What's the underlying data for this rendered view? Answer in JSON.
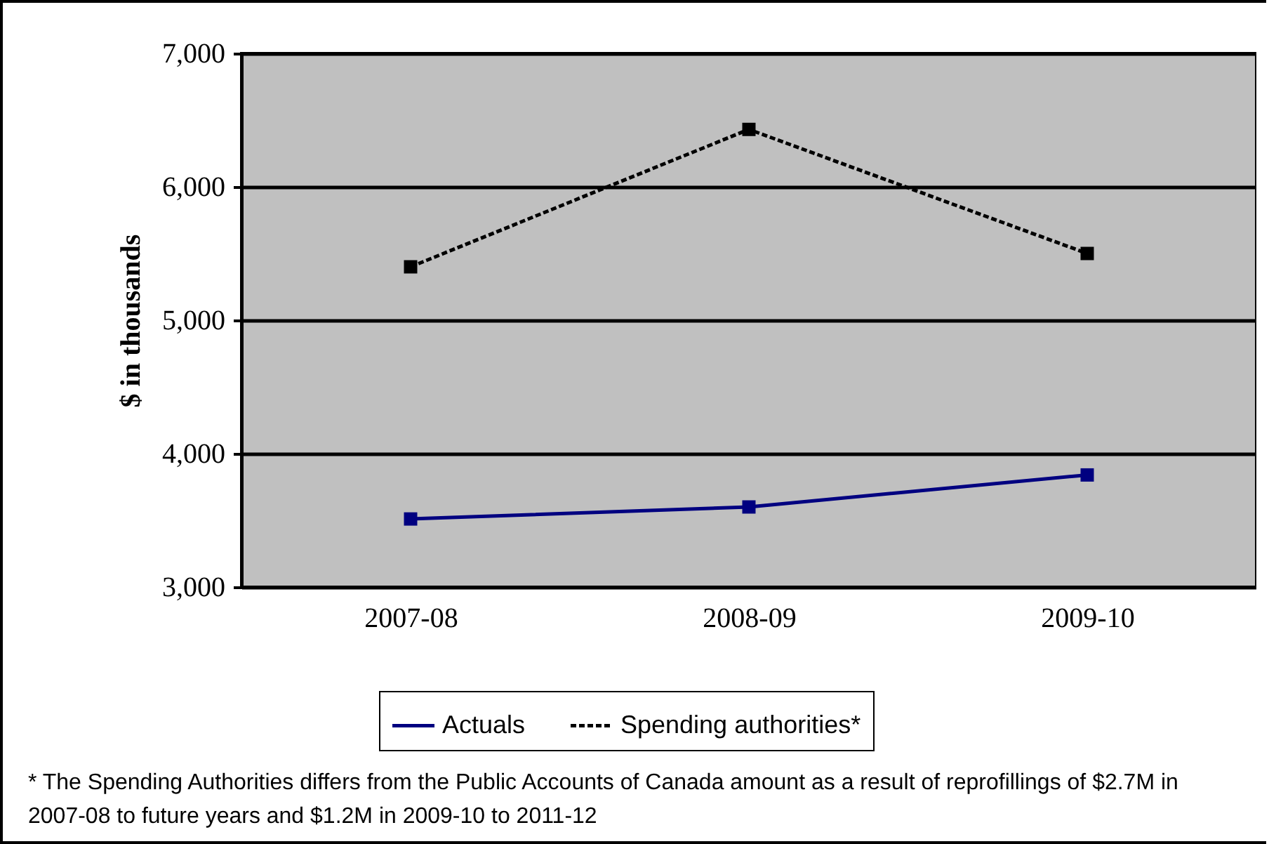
{
  "chart_data": {
    "type": "line",
    "ylabel": "$ in thousands",
    "categories": [
      "2007-08",
      "2008-09",
      "2009-10"
    ],
    "series": [
      {
        "name": "Actuals",
        "color": "#000080",
        "line_style": "solid",
        "values": [
          3510,
          3600,
          3840
        ]
      },
      {
        "name": "Spending authorities*",
        "color": "#000000",
        "line_style": "dashed",
        "values": [
          5400,
          6430,
          5500
        ]
      }
    ],
    "ylim": [
      3000,
      7000
    ],
    "yticks": [
      {
        "value": 3000,
        "label": "3,000"
      },
      {
        "value": 4000,
        "label": "4,000"
      },
      {
        "value": 5000,
        "label": "5,000"
      },
      {
        "value": 6000,
        "label": "6,000"
      },
      {
        "value": 7000,
        "label": "7,000"
      }
    ],
    "grid": "y",
    "legend": "bottom",
    "marker": "square",
    "annotations": [
      "* The Spending Authorities differs from the Public  Accounts of Canada amount as a result of reprofillings of $2.7M in 2007-08 to future years and $1.2M in 2009-10 to 2011-12"
    ]
  }
}
